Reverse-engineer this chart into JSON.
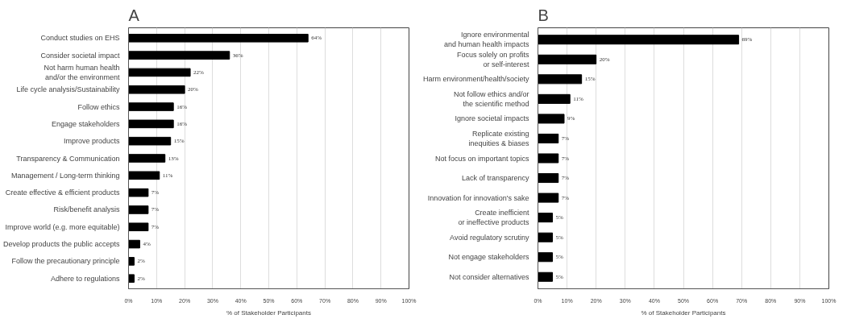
{
  "chart_data": [
    {
      "type": "bar",
      "orientation": "horizontal",
      "title": "A",
      "xlabel": "% of Stakeholder Participants",
      "categories": [
        "Conduct studies on EHS",
        "Consider societal impact",
        "Not harm human health\nand/or the environment",
        "Life cycle analysis/Sustainability",
        "Follow ethics",
        "Engage stakeholders",
        "Improve products",
        "Transparency & Communication",
        "Management / Long-term thinking",
        "Create effective & efficient products",
        "Risk/benefit analysis",
        "Improve world (e.g. more equitable)",
        "Develop products the public accepts",
        "Follow the precautionary principle",
        "Adhere to regulations"
      ],
      "values": [
        64,
        36,
        22,
        20,
        16,
        16,
        15,
        13,
        11,
        7,
        7,
        7,
        4,
        2,
        2
      ],
      "value_labels": [
        "64%",
        "36%",
        "22%",
        "20%",
        "16%",
        "16%",
        "15%",
        "13%",
        "11%",
        "7%",
        "7%",
        "7%",
        "4%",
        "2%",
        "2%"
      ],
      "color": "#000000",
      "xlim": [
        0,
        100
      ],
      "xticks": [
        {
          "value": 0,
          "label": "0%"
        },
        {
          "value": 10,
          "label": "10%"
        },
        {
          "value": 20,
          "label": "20%"
        },
        {
          "value": 30,
          "label": "30%"
        },
        {
          "value": 40,
          "label": "40%"
        },
        {
          "value": 50,
          "label": "50%"
        },
        {
          "value": 60,
          "label": "60%"
        },
        {
          "value": 70,
          "label": "70%"
        },
        {
          "value": 80,
          "label": "80%"
        },
        {
          "value": 90,
          "label": "90%"
        },
        {
          "value": 100,
          "label": "100%"
        }
      ],
      "grid": "x"
    },
    {
      "type": "bar",
      "orientation": "horizontal",
      "title": "B",
      "xlabel": "% of Stakeholder Participants",
      "categories": [
        "Ignore environmental\nand human health impacts",
        "Focus solely on profits\nor self-interest",
        "Harm environment/health/society",
        "Not follow ethics and/or\nthe scientific method",
        "Ignore societal impacts",
        "Replicate existing\ninequities & biases",
        "Not focus on important topics",
        "Lack of transparency",
        "Innovation for innovation's sake",
        "Create inefficient\nor ineffective products",
        "Avoid regulatory scrutiny",
        "Not engage stakeholders",
        "Not consider alternatives"
      ],
      "values": [
        69,
        20,
        15,
        11,
        9,
        7,
        7,
        7,
        7,
        5,
        5,
        5,
        5
      ],
      "value_labels": [
        "69%",
        "20%",
        "15%",
        "11%",
        "9%",
        "7%",
        "7%",
        "7%",
        "7%",
        "5%",
        "5%",
        "5%",
        "5%"
      ],
      "color": "#000000",
      "xlim": [
        0,
        100
      ],
      "xticks": [
        {
          "value": 0,
          "label": "0%"
        },
        {
          "value": 10,
          "label": "10%"
        },
        {
          "value": 20,
          "label": "20%"
        },
        {
          "value": 30,
          "label": "30%"
        },
        {
          "value": 40,
          "label": "40%"
        },
        {
          "value": 50,
          "label": "50%"
        },
        {
          "value": 60,
          "label": "60%"
        },
        {
          "value": 70,
          "label": "70%"
        },
        {
          "value": 80,
          "label": "80%"
        },
        {
          "value": 90,
          "label": "90%"
        },
        {
          "value": 100,
          "label": "100%"
        }
      ],
      "grid": "x"
    }
  ]
}
